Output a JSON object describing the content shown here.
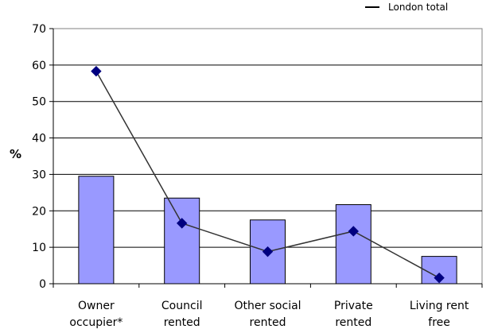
{
  "chart_data": {
    "type": "bar",
    "categories": [
      [
        "Owner",
        "occupier*"
      ],
      [
        "Council",
        "rented"
      ],
      [
        "Other social",
        "rented"
      ],
      [
        "Private",
        "rented"
      ],
      [
        "Living rent",
        "free"
      ]
    ],
    "ylabel": "%",
    "ylim": [
      0,
      70
    ],
    "yticks": [
      0,
      10,
      20,
      30,
      40,
      50,
      60,
      70
    ],
    "grid": true,
    "legend_position": "top-right",
    "series": [
      {
        "type": "bar",
        "values": [
          29.5,
          23.5,
          17.5,
          21.7,
          7.5
        ],
        "color": "#9999ff"
      },
      {
        "type": "line",
        "name": "London total",
        "values": [
          58.3,
          16.6,
          8.8,
          14.4,
          1.6
        ],
        "color": "#000080"
      }
    ]
  }
}
